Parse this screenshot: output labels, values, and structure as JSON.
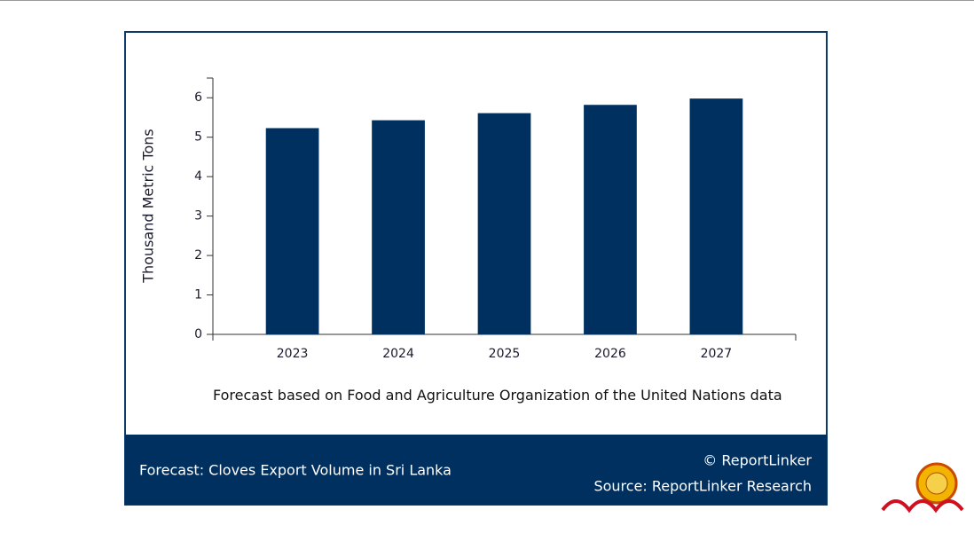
{
  "chart_data": {
    "type": "bar",
    "y_label": "Thousand Metric Tons",
    "categories": [
      "2023",
      "2024",
      "2025",
      "2026",
      "2027"
    ],
    "values": [
      5.23,
      5.43,
      5.61,
      5.82,
      5.98
    ],
    "color": "#003060",
    "ylim": [
      0,
      6.5
    ],
    "yticks": [
      0,
      1,
      2,
      3,
      4,
      5,
      6
    ],
    "grid": false,
    "note": "Forecast based on Food and Agriculture Organization of the United Nations data",
    "footer_title": "Forecast: Cloves Export Volume in Sri Lanka",
    "copyright": "© ReportLinker",
    "source": "Source:  ReportLinker Research"
  }
}
